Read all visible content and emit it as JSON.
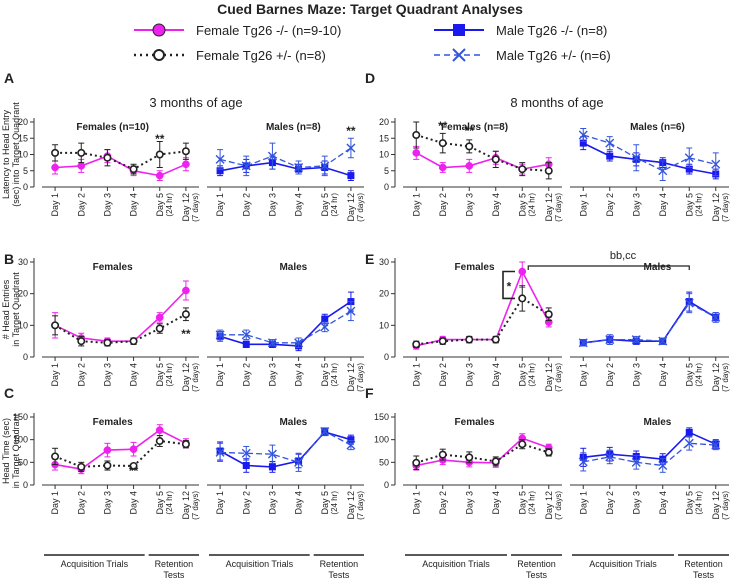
{
  "title": "Cued Barnes Maze: Target Quadrant Analyses",
  "colors": {
    "female_ko": "#ee22ee",
    "female_het": "#222222",
    "male_ko": "#1a1aee",
    "male_het": "#3355dd",
    "axis": "#333333"
  },
  "legend": {
    "female_ko": "Female Tg26 -/- (n=9-10)",
    "male_ko": "Male Tg26 -/- (n=8)",
    "female_het": "Female Tg26 +/- (n=8)",
    "male_het": "Male Tg26 +/- (n=6)"
  },
  "columns": {
    "left": "3 months of age",
    "right": "8 months of age"
  },
  "day_labels": [
    "Day 1",
    "Day 2",
    "Day 3",
    "Day 4",
    "Day 5",
    "Day 12"
  ],
  "day_notes": [
    "(24 hr)",
    "(7 days)"
  ],
  "bottom_groups": {
    "acquisition": "Acquisition Trials",
    "retention": "Retention Tests"
  },
  "chart_data": [
    {
      "panel": "A",
      "type": "line",
      "ylabel": "Latency to Head Entry (sec) into Target Quadrant",
      "ylim": [
        0,
        20
      ],
      "yticks": [
        0,
        5,
        10,
        15,
        20
      ],
      "group_titles": [
        "Females (n=10)",
        "Males (n=8)"
      ],
      "series": [
        {
          "name": "Female Tg26 -/-",
          "group": 0,
          "values": [
            6,
            6.5,
            9.5,
            5,
            3.5,
            7
          ],
          "err": [
            2,
            2,
            2,
            1.5,
            1.5,
            2
          ]
        },
        {
          "name": "Female Tg26 +/-",
          "group": 0,
          "values": [
            10.5,
            10.5,
            9,
            5.5,
            10,
            11
          ],
          "err": [
            2.5,
            3,
            2.5,
            1.5,
            4,
            2.5
          ]
        },
        {
          "name": "Male Tg26 -/-",
          "group": 1,
          "values": [
            5,
            6.5,
            7.5,
            5.5,
            6,
            3.5
          ],
          "err": [
            1.5,
            2,
            2,
            1.5,
            2,
            1.5
          ]
        },
        {
          "name": "Male Tg26 +/-",
          "group": 1,
          "values": [
            8.5,
            6.5,
            9.5,
            6,
            6.5,
            12
          ],
          "err": [
            3,
            3,
            4,
            2,
            3,
            3
          ]
        }
      ],
      "annotations": [
        {
          "text": "**",
          "group": 0,
          "day": 4,
          "value": 13.5
        },
        {
          "text": "**",
          "group": 1,
          "day": 5,
          "value": 16
        }
      ]
    },
    {
      "panel": "D",
      "type": "line",
      "ylabel": "",
      "ylim": [
        0,
        20
      ],
      "yticks": [
        0,
        5,
        10,
        15,
        20
      ],
      "group_titles": [
        "Females (n=8)",
        "Males (n=6)"
      ],
      "series": [
        {
          "name": "Female Tg26 -/-",
          "group": 0,
          "values": [
            10.5,
            6,
            6.5,
            9,
            5.5,
            7
          ],
          "err": [
            2,
            1.5,
            2,
            2,
            1.5,
            2
          ]
        },
        {
          "name": "Female Tg26 +/-",
          "group": 0,
          "values": [
            16,
            13.5,
            12.5,
            8.5,
            5.5,
            5
          ],
          "err": [
            4,
            3,
            2,
            2.5,
            2,
            2.5
          ]
        },
        {
          "name": "Male Tg26 -/-",
          "group": 1,
          "values": [
            13.5,
            9.5,
            8.5,
            7.5,
            5.5,
            4
          ],
          "err": [
            2,
            1.5,
            2,
            1.5,
            1.5,
            1.5
          ]
        },
        {
          "name": "Male Tg26 +/-",
          "group": 1,
          "values": [
            16,
            13.5,
            9,
            5,
            9,
            7
          ],
          "err": [
            2,
            2,
            4,
            3,
            3,
            3.5
          ]
        }
      ],
      "annotations": [
        {
          "text": "**",
          "group": 0,
          "day": 1,
          "value": 17.5
        },
        {
          "text": "**",
          "group": 0,
          "day": 2,
          "value": 16
        }
      ]
    },
    {
      "panel": "B",
      "type": "line",
      "ylabel": "# Head Entries in Target Quadrant",
      "ylim": [
        0,
        30
      ],
      "yticks": [
        0,
        10,
        20,
        30
      ],
      "group_titles": [
        "Females",
        "Males"
      ],
      "series": [
        {
          "name": "Female Tg26 -/-",
          "group": 0,
          "values": [
            10,
            6,
            5,
            5,
            12.5,
            21
          ],
          "err": [
            4,
            1.5,
            1,
            1,
            1.5,
            3
          ]
        },
        {
          "name": "Female Tg26 +/-",
          "group": 0,
          "values": [
            10,
            5,
            4.5,
            5,
            9,
            13.5
          ],
          "err": [
            3,
            1.5,
            1,
            1,
            1.5,
            2
          ]
        },
        {
          "name": "Male Tg26 -/-",
          "group": 1,
          "values": [
            6.5,
            4,
            4,
            3.5,
            12,
            17.5
          ],
          "err": [
            1.5,
            1,
            1,
            1.5,
            1.5,
            3
          ]
        },
        {
          "name": "Male Tg26 +/-",
          "group": 1,
          "values": [
            7,
            7,
            4.5,
            4.5,
            9.5,
            14.5
          ],
          "err": [
            1.5,
            1.5,
            1,
            1.5,
            1.5,
            3
          ]
        }
      ],
      "annotations": [
        {
          "text": "**",
          "group": 0,
          "day": 5,
          "value": 6
        }
      ]
    },
    {
      "panel": "E",
      "type": "line",
      "ylabel": "",
      "ylim": [
        0,
        30
      ],
      "yticks": [
        0,
        10,
        20,
        30
      ],
      "group_titles": [
        "Females",
        "Males"
      ],
      "series": [
        {
          "name": "Female Tg26 -/-",
          "group": 0,
          "values": [
            3.5,
            5.5,
            5.5,
            5.5,
            27,
            11
          ],
          "err": [
            1,
            1,
            1,
            1,
            5,
            1.5
          ]
        },
        {
          "name": "Female Tg26 +/-",
          "group": 0,
          "values": [
            4,
            5,
            5.5,
            5.5,
            18.5,
            13.5
          ],
          "err": [
            1,
            1,
            1,
            1,
            4,
            2
          ]
        },
        {
          "name": "Male Tg26 -/-",
          "group": 1,
          "values": [
            4.5,
            5.5,
            5,
            5,
            17.5,
            12.5
          ],
          "err": [
            1,
            1.5,
            1,
            1,
            3,
            1.5
          ]
        },
        {
          "name": "Male Tg26 +/-",
          "group": 1,
          "values": [
            4.5,
            5.5,
            5.5,
            5,
            17,
            12.5
          ],
          "err": [
            1,
            1.5,
            1,
            1,
            3,
            1.5
          ]
        }
      ],
      "annotations": [
        {
          "text": "*",
          "group": 0,
          "day": 3.5,
          "value": 21
        },
        {
          "text": "bb,cc",
          "group": 1,
          "day": 1.5,
          "value": 31
        }
      ]
    },
    {
      "panel": "C",
      "type": "line",
      "ylabel": "Head Time (sec) in Target Quadrant",
      "ylim": [
        0,
        150
      ],
      "yticks": [
        0,
        50,
        100,
        150
      ],
      "group_titles": [
        "Females",
        "Males"
      ],
      "series": [
        {
          "name": "Female Tg26 -/-",
          "group": 0,
          "values": [
            45,
            35,
            77,
            79,
            121,
            92
          ],
          "err": [
            12,
            10,
            15,
            15,
            12,
            10
          ]
        },
        {
          "name": "Female Tg26 +/-",
          "group": 0,
          "values": [
            63,
            40,
            43,
            42,
            97,
            90
          ],
          "err": [
            18,
            10,
            10,
            5,
            12,
            8
          ]
        },
        {
          "name": "Male Tg26 -/-",
          "group": 1,
          "values": [
            75,
            43,
            40,
            53,
            117,
            100
          ],
          "err": [
            20,
            15,
            12,
            15,
            8,
            10
          ]
        },
        {
          "name": "Male Tg26 +/-",
          "group": 1,
          "values": [
            72,
            70,
            68,
            50,
            118,
            88
          ],
          "err": [
            20,
            15,
            20,
            20,
            8,
            10
          ]
        }
      ],
      "annotations": [
        {
          "text": "**",
          "group": 0,
          "day": 3,
          "value": 22
        }
      ]
    },
    {
      "panel": "F",
      "type": "line",
      "ylabel": "",
      "ylim": [
        0,
        150
      ],
      "yticks": [
        0,
        50,
        100,
        150
      ],
      "group_titles": [
        "Females",
        "Males"
      ],
      "series": [
        {
          "name": "Female Tg26 -/-",
          "group": 0,
          "values": [
            43,
            55,
            50,
            49,
            103,
            82
          ],
          "err": [
            10,
            10,
            10,
            10,
            10,
            8
          ]
        },
        {
          "name": "Female Tg26 +/-",
          "group": 0,
          "values": [
            49,
            67,
            61,
            52,
            90,
            72
          ],
          "err": [
            15,
            12,
            12,
            10,
            10,
            8
          ]
        },
        {
          "name": "Male Tg26 -/-",
          "group": 1,
          "values": [
            61,
            68,
            63,
            57,
            116,
            90
          ],
          "err": [
            20,
            15,
            12,
            12,
            10,
            10
          ]
        },
        {
          "name": "Male Tg26 +/-",
          "group": 1,
          "values": [
            51,
            62,
            50,
            43,
            92,
            88
          ],
          "err": [
            20,
            15,
            15,
            15,
            15,
            10
          ]
        }
      ],
      "annotations": []
    }
  ]
}
